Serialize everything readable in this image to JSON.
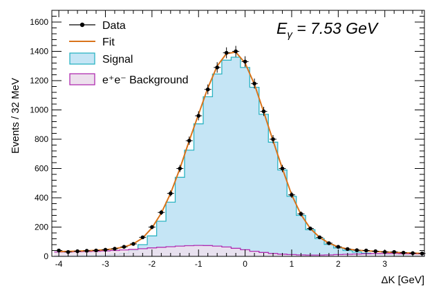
{
  "chart_data": {
    "type": "histogram",
    "xlabel": "ΔK [GeV]",
    "ylabel": "Events / 32 MeV",
    "xlim": [
      -4.15,
      3.85
    ],
    "ylim": [
      0,
      1680
    ],
    "xticks": [
      -4,
      -3,
      -2,
      -1,
      0,
      1,
      2,
      3
    ],
    "yticks": [
      0,
      200,
      400,
      600,
      800,
      1000,
      1200,
      1400,
      1600
    ],
    "annotation": {
      "prefix": "E",
      "subscript": "γ",
      "suffix": " = 7.53 GeV"
    },
    "legend": {
      "position": "top-left",
      "entries": [
        {
          "label": "Data",
          "style": "marker"
        },
        {
          "label": "Fit",
          "style": "line"
        },
        {
          "label": "Signal",
          "style": "box"
        },
        {
          "label": "e⁺e⁻ Background",
          "style": "box"
        }
      ]
    },
    "colors": {
      "data": "#000000",
      "fit": "#d9731a",
      "signal_fill": "#c5e5f5",
      "signal_line": "#2bb3c2",
      "background_fill": "#ede0ed",
      "background_line": "#b02cb0"
    },
    "series": [
      {
        "name": "Data",
        "x": [
          -4.0,
          -3.8,
          -3.6,
          -3.4,
          -3.2,
          -3.0,
          -2.8,
          -2.6,
          -2.4,
          -2.2,
          -2.0,
          -1.8,
          -1.6,
          -1.4,
          -1.2,
          -1.0,
          -0.8,
          -0.6,
          -0.4,
          -0.2,
          0.0,
          0.2,
          0.4,
          0.6,
          0.8,
          1.0,
          1.2,
          1.4,
          1.6,
          1.8,
          2.0,
          2.2,
          2.4,
          2.6,
          2.8,
          3.0,
          3.2,
          3.4,
          3.6,
          3.8
        ],
        "y": [
          40,
          30,
          35,
          38,
          40,
          45,
          52,
          65,
          85,
          130,
          200,
          300,
          430,
          600,
          790,
          960,
          1140,
          1290,
          1390,
          1400,
          1330,
          1180,
          990,
          800,
          600,
          420,
          290,
          190,
          130,
          90,
          65,
          50,
          42,
          40,
          35,
          30,
          30,
          25,
          22,
          20
        ]
      },
      {
        "name": "Fit",
        "x": [
          -4.0,
          -3.8,
          -3.6,
          -3.4,
          -3.2,
          -3.0,
          -2.8,
          -2.6,
          -2.4,
          -2.2,
          -2.0,
          -1.8,
          -1.6,
          -1.4,
          -1.2,
          -1.0,
          -0.8,
          -0.6,
          -0.4,
          -0.2,
          0.0,
          0.2,
          0.4,
          0.6,
          0.8,
          1.0,
          1.2,
          1.4,
          1.6,
          1.8,
          2.0,
          2.2,
          2.4,
          2.6,
          2.8,
          3.0,
          3.2,
          3.4,
          3.6,
          3.8
        ],
        "y": [
          33,
          34,
          36,
          38,
          41,
          45,
          52,
          64,
          85,
          125,
          195,
          295,
          430,
          600,
          790,
          970,
          1150,
          1300,
          1385,
          1395,
          1320,
          1175,
          985,
          790,
          600,
          420,
          285,
          190,
          130,
          90,
          65,
          50,
          42,
          38,
          34,
          30,
          28,
          25,
          22,
          20
        ]
      },
      {
        "name": "Signal",
        "x": [
          -4.0,
          -3.8,
          -3.6,
          -3.4,
          -3.2,
          -3.0,
          -2.8,
          -2.6,
          -2.4,
          -2.2,
          -2.0,
          -1.8,
          -1.6,
          -1.4,
          -1.2,
          -1.0,
          -0.8,
          -0.6,
          -0.4,
          -0.2,
          0.0,
          0.2,
          0.4,
          0.6,
          0.8,
          1.0,
          1.2,
          1.4,
          1.6,
          1.8,
          2.0,
          2.2,
          2.4,
          2.6,
          2.8,
          3.0,
          3.2,
          3.4,
          3.6,
          3.8
        ],
        "y": [
          2,
          3,
          4,
          5,
          6,
          8,
          12,
          20,
          40,
          80,
          140,
          240,
          370,
          540,
          725,
          905,
          1090,
          1245,
          1340,
          1360,
          1290,
          1155,
          970,
          780,
          590,
          410,
          280,
          182,
          122,
          82,
          57,
          40,
          30,
          22,
          15,
          10,
          8,
          6,
          4,
          3
        ]
      },
      {
        "name": "e⁺e⁻ Background",
        "x": [
          -4.0,
          -3.8,
          -3.6,
          -3.4,
          -3.2,
          -3.0,
          -2.8,
          -2.6,
          -2.4,
          -2.2,
          -2.0,
          -1.8,
          -1.6,
          -1.4,
          -1.2,
          -1.0,
          -0.8,
          -0.6,
          -0.4,
          -0.2,
          0.0,
          0.2,
          0.4,
          0.6,
          0.8,
          1.0,
          1.2,
          1.4,
          1.6,
          1.8,
          2.0,
          2.2,
          2.4,
          2.6,
          2.8,
          3.0,
          3.2,
          3.4,
          3.6,
          3.8
        ],
        "y": [
          30,
          30,
          32,
          33,
          35,
          37,
          40,
          44,
          48,
          52,
          58,
          62,
          66,
          70,
          73,
          75,
          74,
          70,
          64,
          55,
          45,
          35,
          27,
          20,
          15,
          12,
          10,
          9,
          9,
          10,
          12,
          14,
          16,
          18,
          20,
          20,
          20,
          18,
          17,
          17
        ]
      }
    ]
  }
}
